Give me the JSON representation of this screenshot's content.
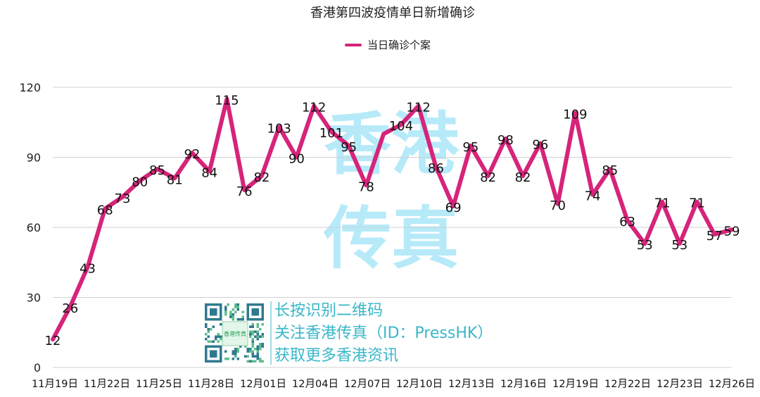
{
  "chart_data": {
    "type": "line",
    "title": "香港第四波疫情单日新增确诊",
    "xlabel": "",
    "ylabel": "",
    "ylim": [
      0,
      120
    ],
    "yticks": [
      0,
      30,
      60,
      90,
      120
    ],
    "legend_position": "top-center",
    "grid": true,
    "x_tick_labels": [
      "11月19日",
      "11月22日",
      "11月25日",
      "11月28日",
      "12月01日",
      "12月04日",
      "12月07日",
      "12月10日",
      "12月13日",
      "12月16日",
      "12月19日",
      "12月22日",
      "12月23日",
      "12月26日"
    ],
    "series": [
      {
        "name": "当日确诊个案",
        "color": "#d6247a",
        "values": [
          12,
          26,
          43,
          68,
          73,
          80,
          85,
          81,
          92,
          84,
          115,
          76,
          82,
          103,
          90,
          112,
          101,
          95,
          78,
          100,
          104,
          112,
          86,
          69,
          95,
          82,
          98,
          82,
          96,
          70,
          109,
          74,
          85,
          63,
          53,
          71,
          53,
          71,
          57,
          59
        ],
        "labels": [
          "12",
          "26",
          "43",
          "68",
          "73",
          "80",
          "85",
          "81",
          "92",
          "84",
          "115",
          "76",
          "82",
          "103",
          "90",
          "112",
          "101",
          "95",
          "78",
          "",
          "104",
          "112",
          "86",
          "69",
          "95",
          "82",
          "98",
          "82",
          "96",
          "70",
          "109",
          "74",
          "85",
          "63",
          "53",
          "71",
          "53",
          "71",
          "57",
          "59"
        ]
      }
    ]
  },
  "watermark": {
    "line1": "香港",
    "line2": "传真",
    "color": "#5fd2f2"
  },
  "promo": {
    "lines": [
      "长按识别二维码",
      "关注香港传真（ID：PressHK）",
      "获取更多香港资讯"
    ],
    "qr_center": "香港传真",
    "color": "#39b7c8"
  }
}
